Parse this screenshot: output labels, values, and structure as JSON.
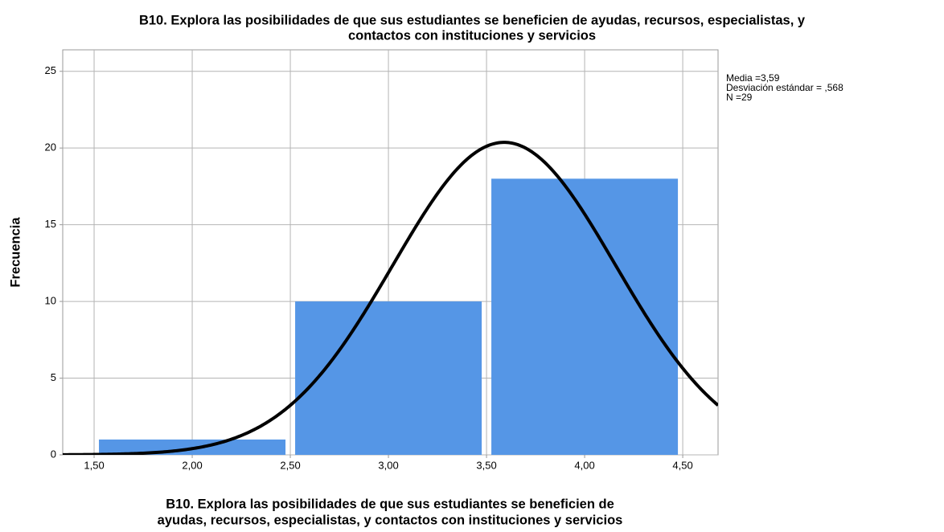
{
  "chart_data": {
    "type": "histogram",
    "title": [
      "B10. Explora las posibilidades de que sus estudiantes se beneficien de ayudas, recursos, especialistas, y",
      "contactos con instituciones y servicios"
    ],
    "x_label": [
      "B10. Explora las posibilidades de que sus estudiantes se beneficien de",
      "ayudas, recursos, especialistas, y contactos con instituciones y servicios"
    ],
    "y_label": "Frecuencia",
    "bins": [
      1.5,
      2.5,
      3.5,
      4.5
    ],
    "values": [
      1,
      10,
      18
    ],
    "color": "#5596e6",
    "curve_color": "#000000",
    "xlim": [
      1.34,
      4.68
    ],
    "xticks": [
      {
        "value": 1.5,
        "label": "1,50"
      },
      {
        "value": 2.0,
        "label": "2,00"
      },
      {
        "value": 2.5,
        "label": "2,50"
      },
      {
        "value": 3.0,
        "label": "3,00"
      },
      {
        "value": 3.5,
        "label": "3,50"
      },
      {
        "value": 4.0,
        "label": "4,00"
      },
      {
        "value": 4.5,
        "label": "4,50"
      }
    ],
    "ylim": [
      0,
      26.4
    ],
    "yticks": [
      0,
      5,
      10,
      15,
      20,
      25
    ],
    "grid": true,
    "stats": {
      "mean": {
        "value": 3.59,
        "label": "Media =3,59"
      },
      "sd": {
        "value": 0.568,
        "label": "Desviación estándar = ,568"
      },
      "n": {
        "value": 29,
        "label": "N =29"
      }
    }
  }
}
